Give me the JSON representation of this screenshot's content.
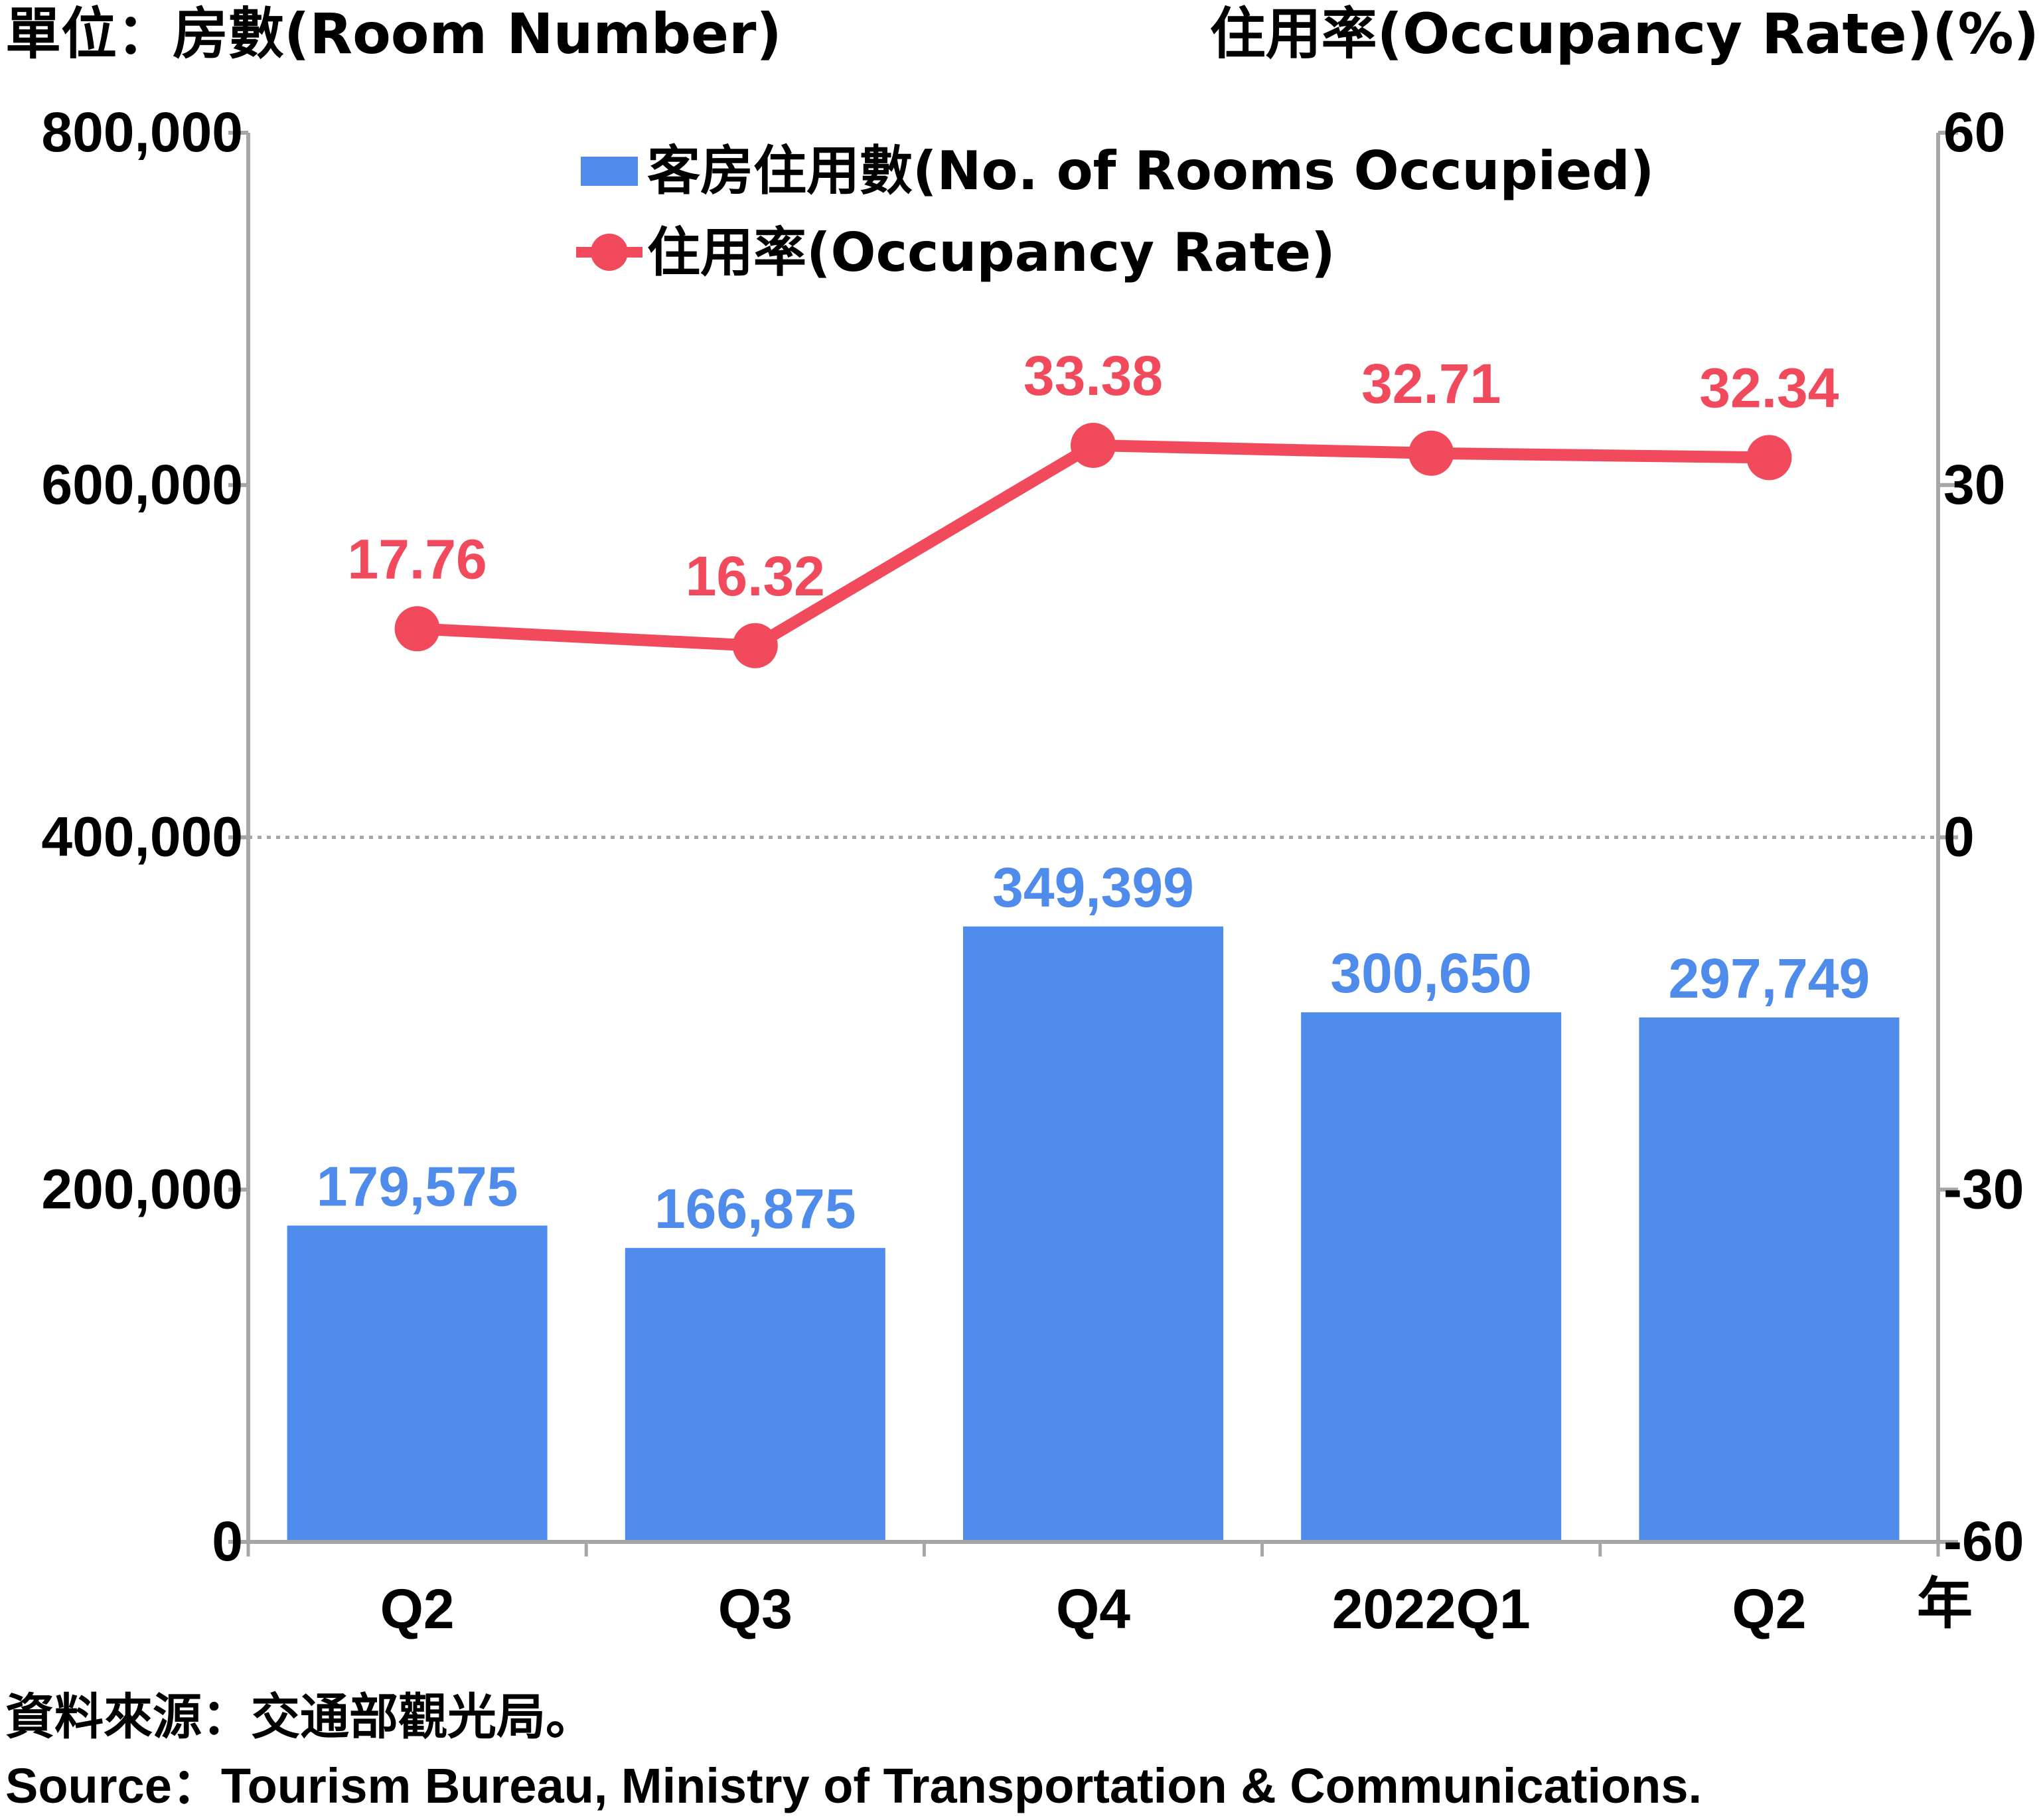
{
  "unit_left": "單位：房數(Room Number)",
  "unit_right": "住用率(Occupancy Rate)(%)",
  "year_suffix": "年",
  "source_zh": "資料來源：交通部觀光局。",
  "source_en": "Source：Tourism Bureau, Ministry of Transportation & Communications.",
  "colors": {
    "bar": "#4f8bea",
    "line": "#f04a5c",
    "axis": "#a6a6a6",
    "text": "#000000"
  },
  "chart_data": {
    "type": "bar+line",
    "categories": [
      "Q2",
      "Q3",
      "Q4",
      "2022Q1",
      "Q2"
    ],
    "series": [
      {
        "name": "客房住用數(No. of Rooms Occupied)",
        "type": "bar",
        "axis": "left",
        "values": [
          179575,
          166875,
          349399,
          300650,
          297749
        ],
        "labels": [
          "179,575",
          "166,875",
          "349,399",
          "300,650",
          "297,749"
        ]
      },
      {
        "name": "住用率(Occupancy Rate)",
        "type": "line",
        "axis": "right",
        "values": [
          17.76,
          16.32,
          33.38,
          32.71,
          32.34
        ],
        "labels": [
          "17.76",
          "16.32",
          "33.38",
          "32.71",
          "32.34"
        ]
      }
    ],
    "y_left": {
      "range": [
        0,
        800000
      ],
      "ticks": [
        0,
        200000,
        400000,
        600000,
        800000
      ],
      "tick_labels": [
        "0",
        "200,000",
        "400,000",
        "600,000",
        "800,000"
      ]
    },
    "y_right": {
      "range": [
        -60,
        60
      ],
      "ticks": [
        -60,
        -30,
        0,
        30,
        60
      ],
      "tick_labels": [
        "-60",
        "-30",
        "0",
        "30",
        "60"
      ]
    },
    "zero_line": "dotted",
    "legend_position": "top-center"
  }
}
